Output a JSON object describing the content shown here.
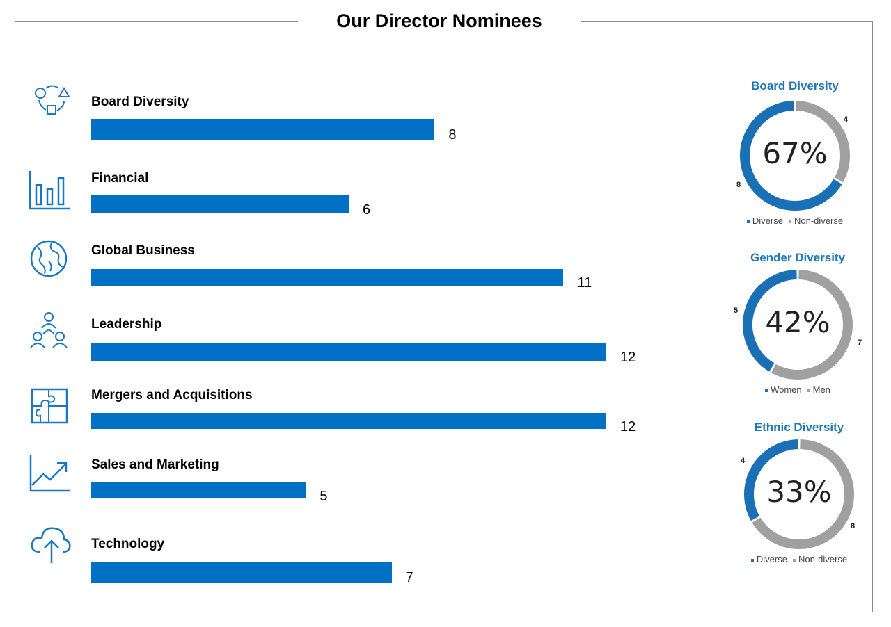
{
  "header": {
    "title": "Our Director Nominees"
  },
  "colors": {
    "bar": "#0071c5",
    "diverse": "#1a6fb5",
    "non_diverse": "#a0a0a0",
    "icon": "#1a78c2"
  },
  "chart_data": [
    {
      "type": "bar",
      "orientation": "horizontal",
      "title": "Our Director Nominees",
      "categories": [
        "Board Diversity",
        "Financial",
        "Global Business",
        "Leadership",
        "Mergers and Acquisitions",
        "Sales and Marketing",
        "Technology"
      ],
      "values": [
        8,
        6,
        11,
        12,
        12,
        5,
        7
      ],
      "icons": [
        "shapes-icon",
        "bar-chart-icon",
        "globe-icon",
        "people-network-icon",
        "puzzle-icon",
        "trend-line-icon",
        "cloud-upload-icon"
      ],
      "xlim": [
        0,
        12
      ]
    },
    {
      "type": "pie",
      "donut": true,
      "title": "Board Diversity",
      "center_label": "67%",
      "labels": [
        "Diverse",
        "Non-diverse"
      ],
      "values": [
        8,
        4
      ],
      "legend": "bottom"
    },
    {
      "type": "pie",
      "donut": true,
      "title": "Gender Diversity",
      "center_label": "42%",
      "labels": [
        "Women",
        "Men"
      ],
      "values": [
        5,
        7
      ],
      "legend": "bottom"
    },
    {
      "type": "pie",
      "donut": true,
      "title": "Ethnic Diversity",
      "center_label": "33%",
      "labels": [
        "Diverse",
        "Non-diverse"
      ],
      "values": [
        4,
        8
      ],
      "legend": "bottom"
    }
  ]
}
